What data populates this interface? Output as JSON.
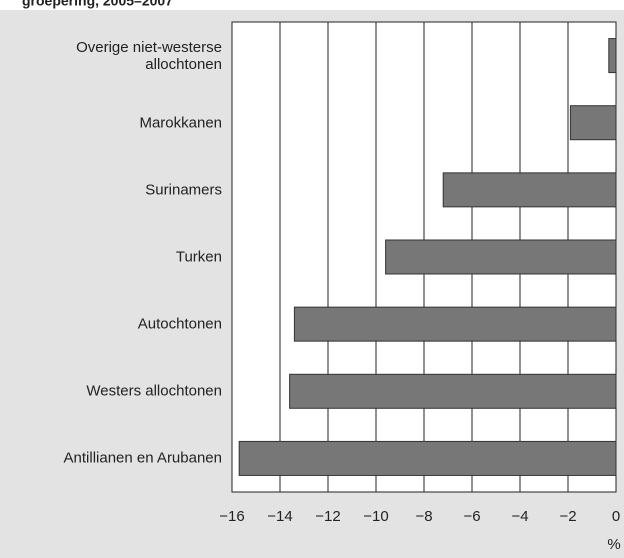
{
  "chart_data": {
    "type": "bar",
    "orientation": "horizontal",
    "title": "groepering, 2005–2007",
    "categories": [
      "Overige niet-westerse allochtonen",
      "Marokkanen",
      "Surinamers",
      "Turken",
      "Autochtonen",
      "Westers allochtonen",
      "Antillianen en Arubanen"
    ],
    "values": [
      -0.3,
      -1.9,
      -7.2,
      -9.6,
      -13.4,
      -13.6,
      -15.7
    ],
    "color": "#777777",
    "xlabel": "%",
    "xlim": [
      -16,
      0
    ],
    "xticks": [
      {
        "value": -16,
        "label": "−16"
      },
      {
        "value": -14,
        "label": "−14"
      },
      {
        "value": -12,
        "label": "−12"
      },
      {
        "value": -10,
        "label": "−10"
      },
      {
        "value": -8,
        "label": "−8"
      },
      {
        "value": -6,
        "label": "−6"
      },
      {
        "value": -4,
        "label": "−4"
      },
      {
        "value": -2,
        "label": "−2"
      },
      0
    ],
    "grid": true
  }
}
